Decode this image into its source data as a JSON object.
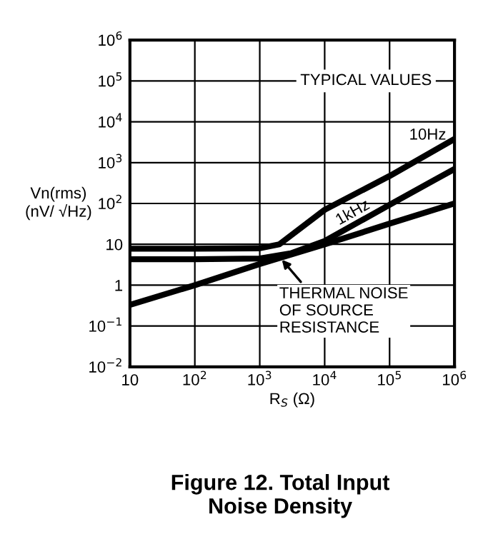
{
  "chart_data": {
    "type": "line",
    "title": "Figure 12. Total Input\nNoise Density",
    "xlabel": "R$_{S}$ (Ω)",
    "ylabel": "Vn(rms)\n(nV/ √Hz)",
    "log": "xy",
    "grid": true,
    "legend": false,
    "line_style": "solid",
    "marker": "none",
    "xlim": [
      10,
      1000000
    ],
    "ylim": [
      0.01,
      1000000
    ],
    "xticks": [
      10,
      {
        "value": 100,
        "label": "10$^{2}$"
      },
      {
        "value": 1000,
        "label": "10$^{3}$"
      },
      {
        "value": 10000,
        "label": "10$^{4}$"
      },
      {
        "value": 100000,
        "label": "10$^{5}$"
      },
      {
        "value": 1000000,
        "label": "10$^{6}$"
      }
    ],
    "yticks": [
      {
        "value": 0.01,
        "label": "10$^{−2}$"
      },
      {
        "value": 0.1,
        "label": "10$^{−1}$"
      },
      1,
      10,
      {
        "value": 100,
        "label": "10$^{2}$"
      },
      {
        "value": 1000,
        "label": "10$^{3}$"
      },
      {
        "value": 10000,
        "label": "10$^{4}$"
      },
      {
        "value": 100000,
        "label": "10$^{5}$"
      },
      {
        "value": 1000000,
        "label": "10$^{6}$"
      }
    ],
    "series": [
      {
        "name": "10Hz",
        "color": "#000000",
        "x": [
          10,
          100,
          1000,
          2000,
          10000,
          100000,
          1000000
        ],
        "values": [
          7.8,
          7.8,
          8,
          10,
          70,
          470,
          3800
        ]
      },
      {
        "name": "1kHz",
        "color": "#000000",
        "x": [
          10,
          100,
          1000,
          3000,
          10000,
          100000,
          1000000
        ],
        "values": [
          4.3,
          4.3,
          4.5,
          6,
          12,
          93,
          700
        ]
      },
      {
        "color": "#000000",
        "x": [
          10,
          100,
          1000,
          10000,
          100000,
          1000000
        ],
        "values": [
          0.33,
          1,
          3.3,
          10,
          32,
          100
        ]
      }
    ],
    "annotations": [
      "TYPICAL VALUES",
      {
        "text": "THERMAL NOISE\nOF SOURCE\nRESISTANCE",
        "x": 2000,
        "y": 5
      }
    ]
  }
}
